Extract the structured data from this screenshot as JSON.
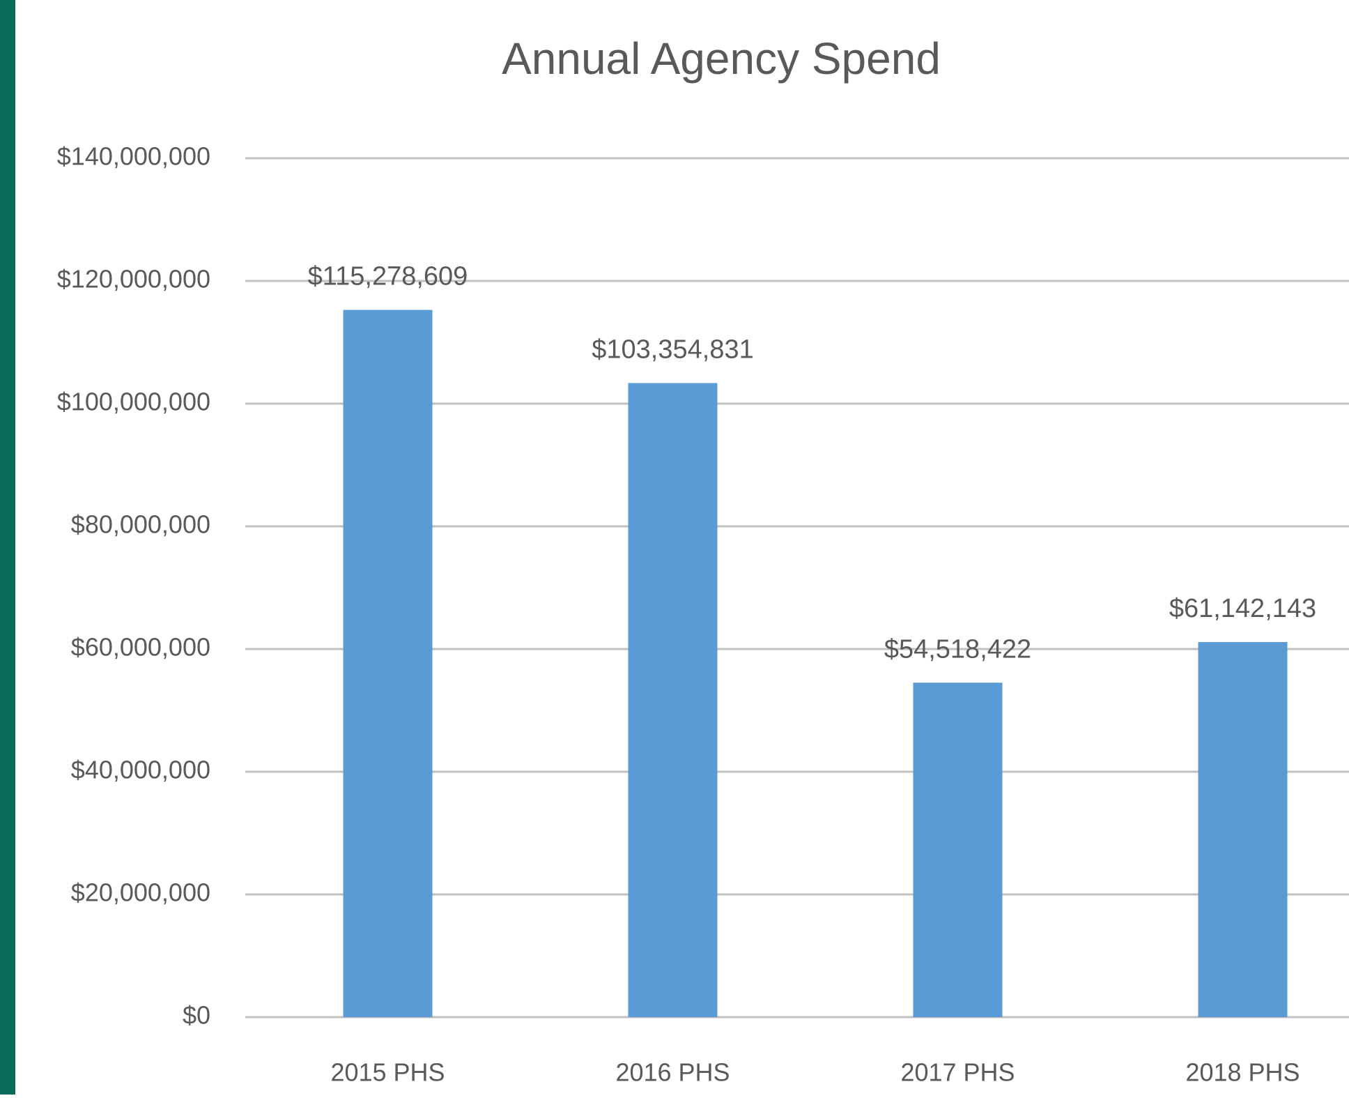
{
  "chart_data": {
    "type": "bar",
    "title": "Annual Agency Spend",
    "categories": [
      "2015 PHS",
      "2016 PHS",
      "2017 PHS",
      "2018 PHS"
    ],
    "values": [
      115278609,
      103354831,
      54518422,
      61142143
    ],
    "value_labels": [
      "$115,278,609",
      "$103,354,831",
      "$54,518,422",
      "$61,142,143"
    ],
    "color": "#5b9bd5",
    "ylim": [
      0,
      140000000
    ],
    "yticks": [
      {
        "value": 0,
        "label": "$0"
      },
      {
        "value": 20000000,
        "label": "$20,000,000"
      },
      {
        "value": 40000000,
        "label": "$40,000,000"
      },
      {
        "value": 60000000,
        "label": "$60,000,000"
      },
      {
        "value": 80000000,
        "label": "$80,000,000"
      },
      {
        "value": 100000000,
        "label": "$100,000,000"
      },
      {
        "value": 120000000,
        "label": "$120,000,000"
      },
      {
        "value": 140000000,
        "label": "$140,000,000"
      }
    ],
    "grid": true
  }
}
